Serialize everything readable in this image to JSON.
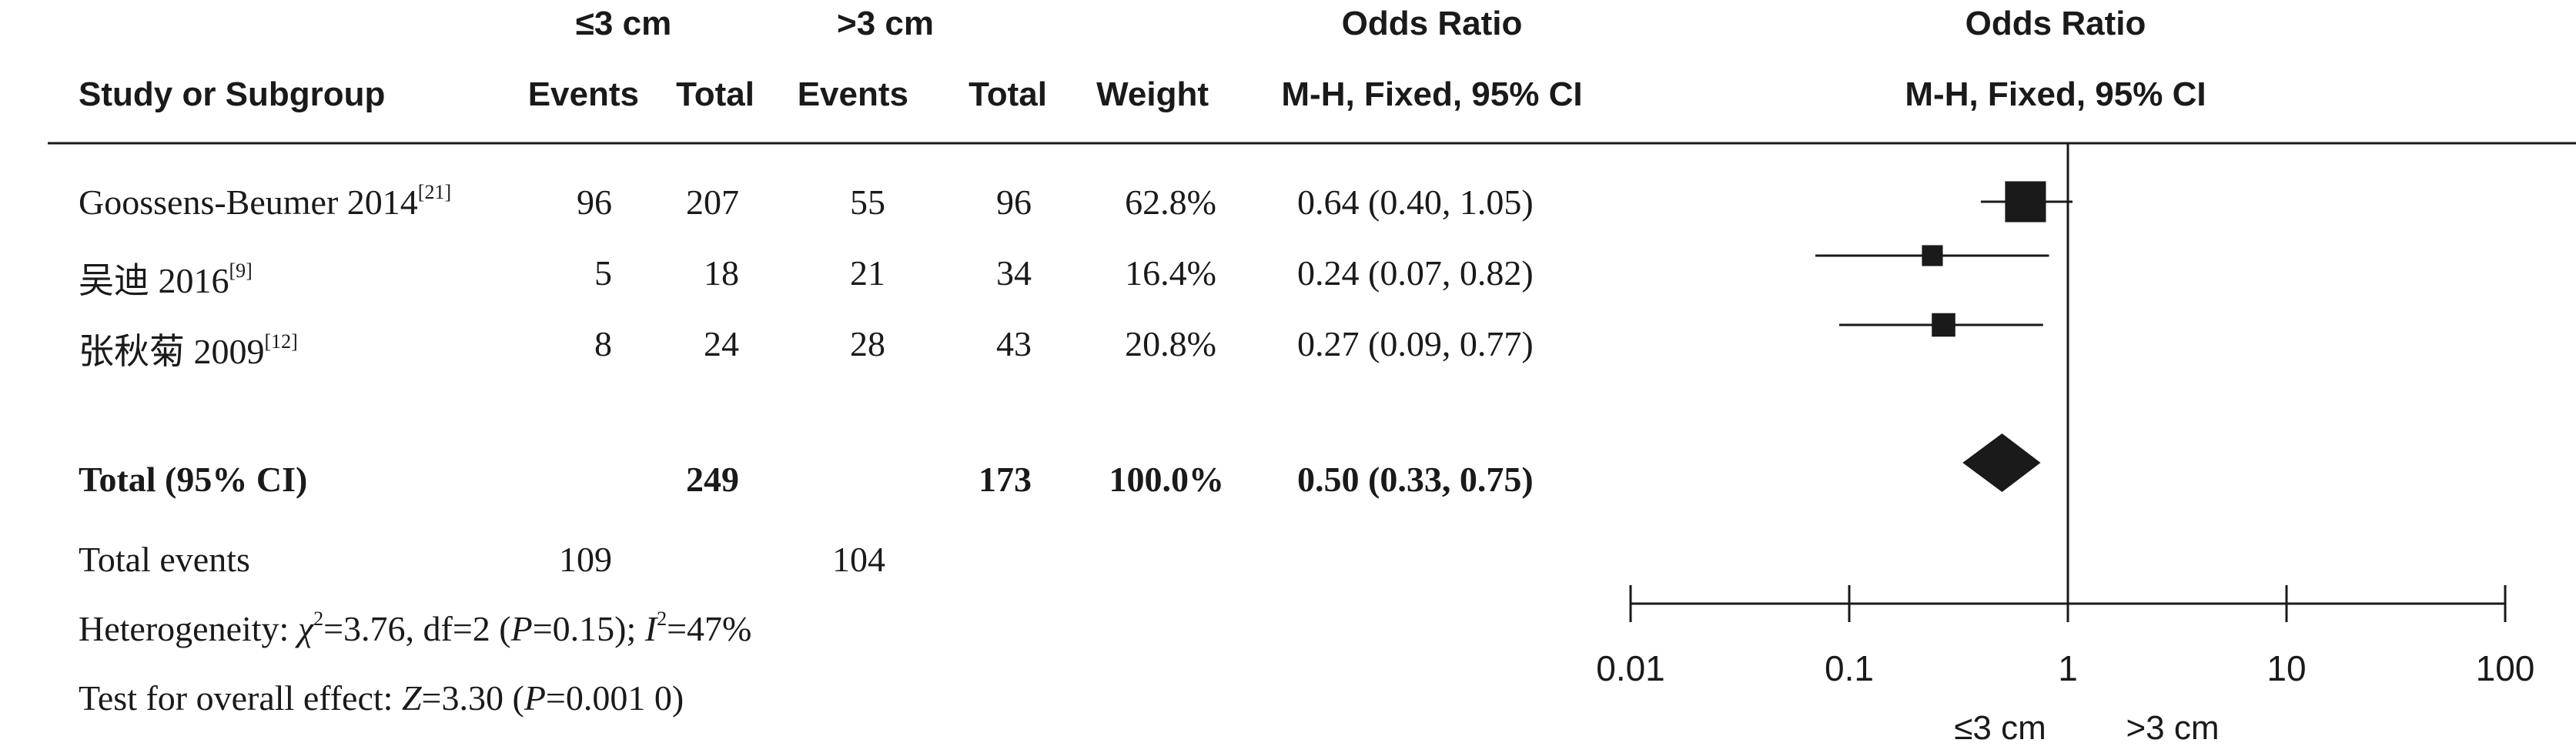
{
  "header": {
    "group1": "≤3 cm",
    "group2": ">3 cm",
    "or_title_table": "Odds Ratio",
    "or_title_plot": "Odds Ratio",
    "col_study": "Study or Subgroup",
    "col_events1": "Events",
    "col_total1": "Total",
    "col_events2": "Events",
    "col_total2": "Total",
    "col_weight": "Weight",
    "col_method_table": "M-H, Fixed, 95% CI",
    "col_method_plot": "M-H, Fixed, 95% CI"
  },
  "studies": [
    {
      "name": "Goossens-Beumer 2014",
      "ref": "[21]",
      "events1": "96",
      "total1": "207",
      "events2": "55",
      "total2": "96",
      "weight": "62.8%",
      "ci_text": "0.64 (0.40, 1.05)"
    },
    {
      "name": "吴迪 2016",
      "ref": "[9]",
      "events1": "5",
      "total1": "18",
      "events2": "21",
      "total2": "34",
      "weight": "16.4%",
      "ci_text": "0.24 (0.07, 0.82)"
    },
    {
      "name": "张秋菊 2009",
      "ref": "[12]",
      "events1": "8",
      "total1": "24",
      "events2": "28",
      "total2": "43",
      "weight": "20.8%",
      "ci_text": "0.27 (0.09, 0.77)"
    }
  ],
  "total": {
    "label": "Total (95% CI)",
    "total1": "249",
    "total2": "173",
    "weight": "100.0%",
    "ci_text": "0.50 (0.33, 0.75)"
  },
  "total_events": {
    "label": "Total events",
    "events1": "109",
    "events2": "104"
  },
  "heterogeneity": {
    "prefix": "Heterogeneity: ",
    "chi_sym": "χ",
    "chi_sup": "2",
    "chi_rest": "=3.76, df=2 (",
    "p_sym": "P",
    "p_rest": "=0.15); ",
    "i_sym": "I",
    "i_sup": "2",
    "i_rest": "=47%"
  },
  "overall_effect": {
    "prefix": "Test for overall effect: ",
    "z_sym": "Z",
    "z_rest": "=3.30 (",
    "p_sym": "P",
    "p_rest": "=0.001 0)"
  },
  "axis": {
    "ticks": [
      "0.01",
      "0.1",
      "1",
      "10",
      "100"
    ],
    "favours_left": "≤3 cm",
    "favours_right": ">3 cm"
  },
  "chart_data": {
    "type": "forest",
    "x_scale": "log",
    "xlim": [
      0.01,
      100
    ],
    "null_line": 1,
    "rows": [
      {
        "study": "Goossens-Beumer 2014",
        "or": 0.64,
        "lo": 0.4,
        "hi": 1.05,
        "weight": 62.8
      },
      {
        "study": "吴迪 2016",
        "or": 0.24,
        "lo": 0.07,
        "hi": 0.82,
        "weight": 16.4
      },
      {
        "study": "张秋菊 2009",
        "or": 0.27,
        "lo": 0.09,
        "hi": 0.77,
        "weight": 20.8
      }
    ],
    "pooled": {
      "or": 0.5,
      "lo": 0.33,
      "hi": 0.75
    }
  }
}
